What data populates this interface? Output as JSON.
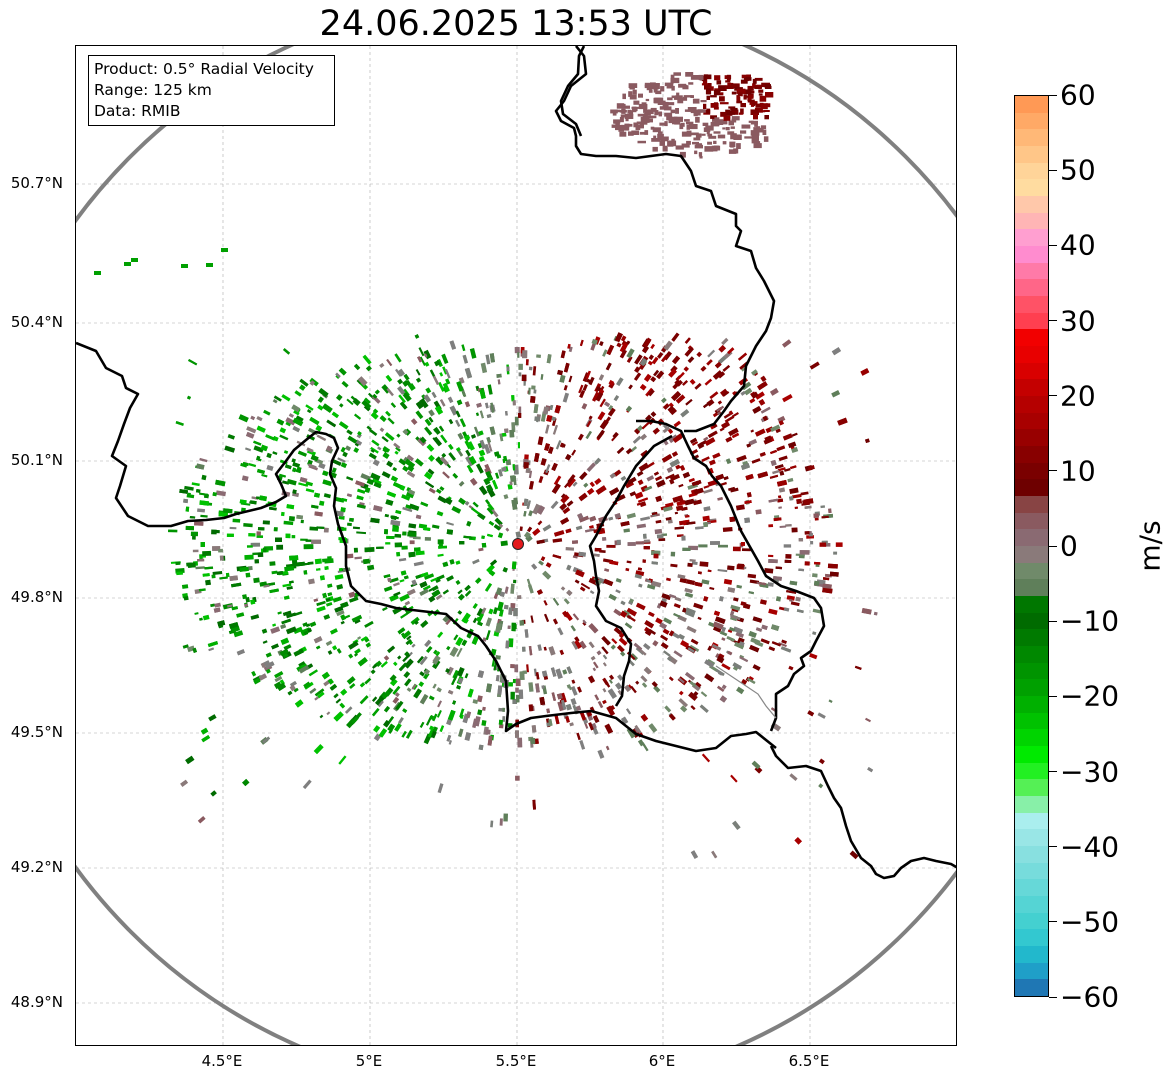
{
  "title": "24.06.2025 13:53 UTC",
  "info_box": {
    "product": "Product: 0.5° Radial Velocity",
    "range": "Range: 125 km",
    "data": "Data: RMIB"
  },
  "latitude_labels": [
    "50.7°N",
    "50.4°N",
    "50.1°N",
    "49.8°N",
    "49.5°N",
    "49.2°N",
    "48.9°N"
  ],
  "longitude_labels": [
    "4.5°E",
    "5°E",
    "5.5°E",
    "6°E",
    "6.5°E"
  ],
  "radar_site": {
    "lon": 5.505,
    "lat": 49.914
  },
  "colorbar": {
    "unit": "m/s",
    "tick_labels": [
      "60",
      "50",
      "40",
      "30",
      "20",
      "10",
      "0",
      "−10",
      "−20",
      "−30",
      "−40",
      "−50",
      "−60"
    ],
    "range": [
      -60,
      60
    ],
    "colors": {
      "strong_outbound": "#ff9955",
      "outbound_red": "#dd0000",
      "outbound_dark": "#7a0000",
      "near_zero": "#7f7f7f",
      "inbound_green": "#008800",
      "strong_inbound": "#40e0e0",
      "extreme_inbound": "#1f77b4"
    }
  }
}
